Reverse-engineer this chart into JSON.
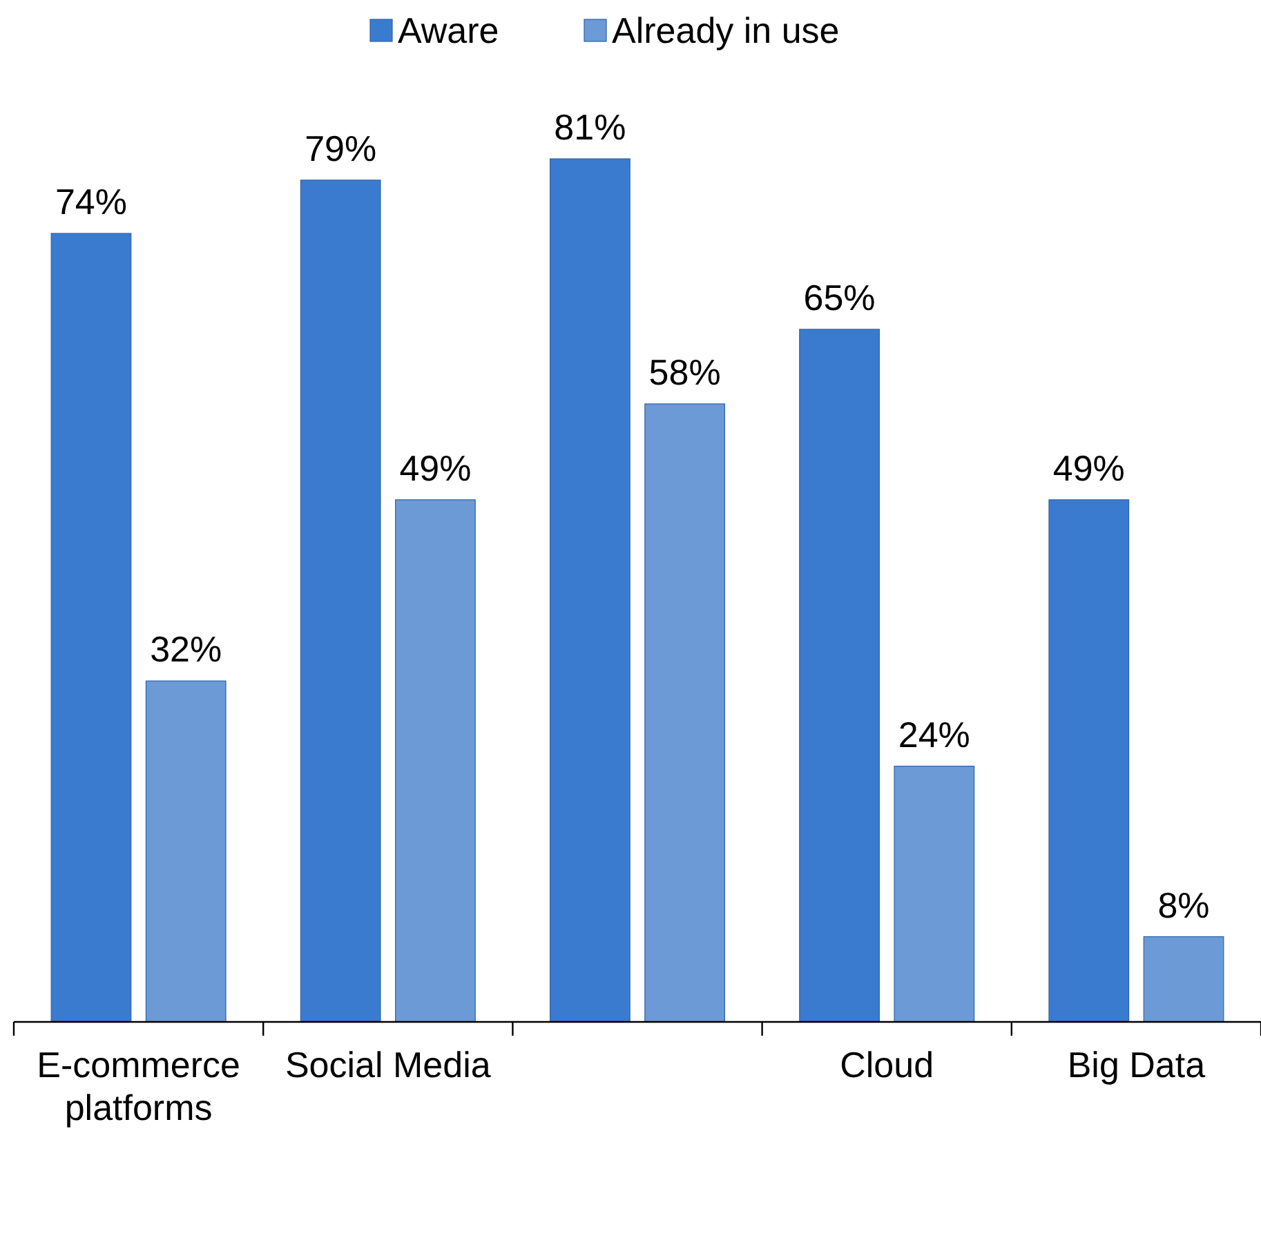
{
  "chart_data": {
    "type": "bar",
    "categories": [
      "E-commerce platforms",
      "Social Media",
      null,
      "Cloud",
      "Big Data"
    ],
    "legend": "top",
    "series": [
      {
        "name": "Aware",
        "color": "#3b7bcf",
        "values": [
          74,
          79,
          81,
          65,
          49
        ],
        "value_labels": [
          "74%",
          "79%",
          "81%",
          "65%",
          "49%"
        ]
      },
      {
        "name": "Already in use",
        "color": "#6b9ad6",
        "values": [
          32,
          49,
          58,
          24,
          8
        ],
        "value_labels": [
          "32%",
          "49%",
          "58%",
          "24%",
          "8%"
        ]
      }
    ]
  }
}
